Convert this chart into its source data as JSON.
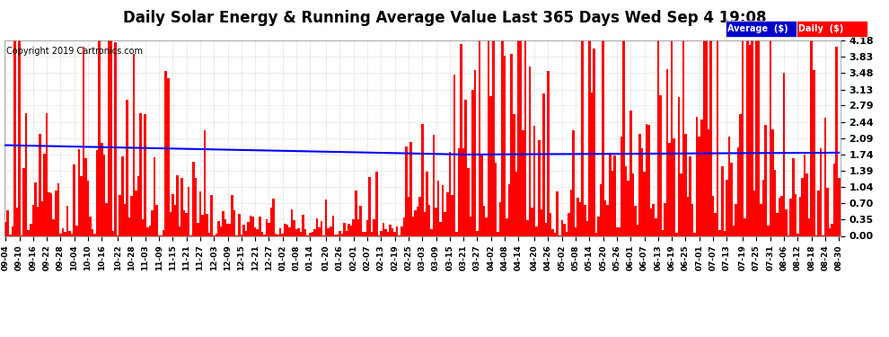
{
  "title": "Daily Solar Energy & Running Average Value Last 365 Days Wed Sep 4 19:08",
  "copyright": "Copyright 2019 Cartronics.com",
  "ylabel_right_ticks": [
    0.0,
    0.35,
    0.7,
    1.04,
    1.39,
    1.74,
    2.09,
    2.44,
    2.79,
    3.13,
    3.48,
    3.83,
    4.18
  ],
  "ylim": [
    0.0,
    4.18
  ],
  "bar_color": "#FF0000",
  "avg_line_color": "#0000FF",
  "bg_color": "#FFFFFF",
  "plot_bg_color": "#FFFFFF",
  "grid_color": "#BBBBBB",
  "legend_avg_color": "#0000CD",
  "legend_daily_color": "#FF0000",
  "title_fontsize": 12,
  "n_bars": 365,
  "xtick_labels": [
    "09-04",
    "09-10",
    "09-16",
    "09-22",
    "09-28",
    "10-04",
    "10-10",
    "10-16",
    "10-22",
    "10-28",
    "11-03",
    "11-09",
    "11-15",
    "11-21",
    "11-27",
    "12-03",
    "12-09",
    "12-15",
    "12-21",
    "12-27",
    "01-02",
    "01-08",
    "01-14",
    "01-20",
    "01-26",
    "02-01",
    "02-07",
    "02-13",
    "02-19",
    "02-25",
    "03-03",
    "03-09",
    "03-15",
    "03-21",
    "03-27",
    "04-02",
    "04-08",
    "04-14",
    "04-20",
    "04-26",
    "05-02",
    "05-08",
    "05-14",
    "05-20",
    "05-26",
    "06-01",
    "06-07",
    "06-13",
    "06-19",
    "06-25",
    "07-01",
    "07-07",
    "07-13",
    "07-19",
    "07-25",
    "07-31",
    "08-06",
    "08-12",
    "08-18",
    "08-24",
    "08-30"
  ]
}
